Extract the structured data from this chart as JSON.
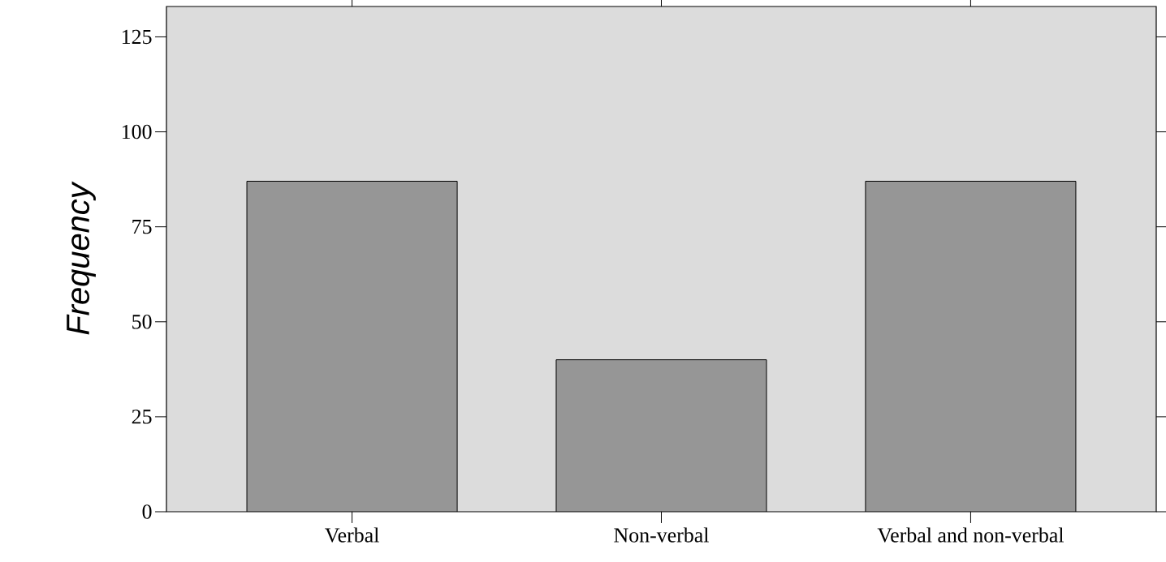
{
  "chart_data": {
    "type": "bar",
    "ylabel": "Frequency",
    "categories": [
      "Verbal",
      "Non-verbal",
      "Verbal and non-verbal"
    ],
    "values": [
      87,
      40,
      87
    ],
    "color": "#969696",
    "ylim": [
      0,
      133
    ],
    "yticks": [
      0,
      25,
      50,
      75,
      100,
      125
    ]
  }
}
